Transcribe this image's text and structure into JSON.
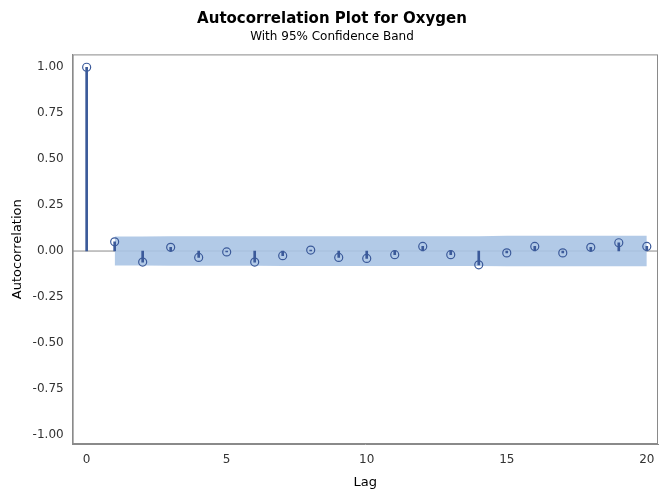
{
  "chart_data": {
    "type": "stem",
    "title": "Autocorrelation Plot for Oxygen",
    "subtitle": "With 95% Confidence Band",
    "x_label": "Lag",
    "y_label": "Autocorrelation",
    "x": [
      0,
      1,
      2,
      3,
      4,
      5,
      6,
      7,
      8,
      9,
      10,
      11,
      12,
      13,
      14,
      15,
      16,
      17,
      18,
      19,
      20
    ],
    "values": [
      1.0,
      0.05,
      -0.06,
      0.02,
      -0.035,
      -0.005,
      -0.06,
      -0.025,
      0.005,
      -0.035,
      -0.04,
      -0.02,
      0.025,
      -0.02,
      -0.075,
      -0.01,
      0.025,
      -0.01,
      0.02,
      0.045,
      0.025
    ],
    "confidence_band": {
      "upper": [
        null,
        0.079,
        0.079,
        0.08,
        0.08,
        0.08,
        0.08,
        0.081,
        0.081,
        0.081,
        0.081,
        0.081,
        0.081,
        0.081,
        0.081,
        0.083,
        0.083,
        0.083,
        0.083,
        0.083,
        0.083
      ],
      "lower": [
        null,
        -0.079,
        -0.079,
        -0.08,
        -0.08,
        -0.08,
        -0.08,
        -0.081,
        -0.081,
        -0.081,
        -0.081,
        -0.081,
        -0.081,
        -0.081,
        -0.081,
        -0.083,
        -0.083,
        -0.083,
        -0.083,
        -0.083,
        -0.083
      ]
    },
    "color": "#3b5a9a",
    "marker": "circle",
    "grid": false,
    "xlim": [
      -0.5,
      20.4
    ],
    "xticks": [
      0,
      5,
      10,
      15,
      20
    ],
    "ylim": [
      -1.05,
      1.07
    ],
    "yticks": [
      {
        "value": -1,
        "label": "-1.00"
      },
      {
        "value": -0.75,
        "label": "-0.75"
      },
      {
        "value": -0.5,
        "label": "-0.50"
      },
      {
        "value": -0.25,
        "label": "-0.25"
      },
      {
        "value": 0,
        "label": "0.00"
      },
      {
        "value": 0.25,
        "label": "0.25"
      },
      {
        "value": 0.5,
        "label": "0.50"
      },
      {
        "value": 0.75,
        "label": "0.75"
      },
      {
        "value": 1,
        "label": "1.00"
      }
    ]
  }
}
